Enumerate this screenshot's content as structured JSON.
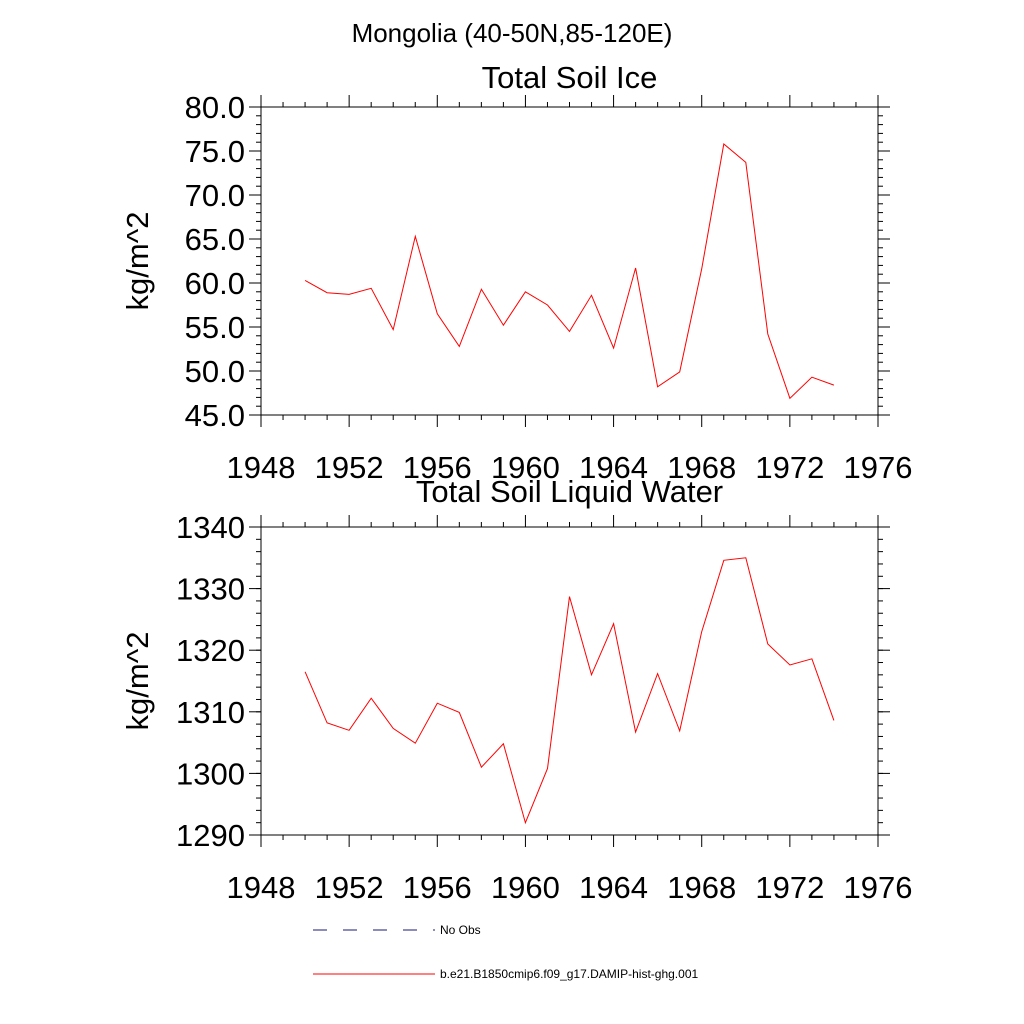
{
  "figure": {
    "title": "Mongolia (40-50N,85-120E)"
  },
  "colors": {
    "model_line": "#ff0000",
    "obs_line": "#1a1a7a",
    "axis": "#000000"
  },
  "chart_data": [
    {
      "type": "line",
      "title": "Total Soil Ice",
      "xlabel": "",
      "ylabel": "kg/m^2",
      "xlim": [
        1948,
        1976
      ],
      "ylim": [
        45,
        80
      ],
      "x_ticks": [
        "1948",
        "1952",
        "1956",
        "1960",
        "1964",
        "1968",
        "1972",
        "1976"
      ],
      "y_ticks": [
        "45.0",
        "50.0",
        "55.0",
        "60.0",
        "65.0",
        "70.0",
        "75.0",
        "80.0"
      ],
      "grid": false,
      "series": [
        {
          "name": "b.e21.B1850cmip6.f09_g17.DAMIP-hist-ghg.001",
          "x": [
            1950,
            1951,
            1952,
            1953,
            1954,
            1955,
            1956,
            1957,
            1958,
            1959,
            1960,
            1961,
            1962,
            1963,
            1964,
            1965,
            1966,
            1967,
            1968,
            1969,
            1970,
            1971,
            1972,
            1973,
            1974
          ],
          "values": [
            60.3,
            58.9,
            58.7,
            59.4,
            54.7,
            65.3,
            56.5,
            52.8,
            59.3,
            55.2,
            59.0,
            57.5,
            54.5,
            58.6,
            52.6,
            61.7,
            48.2,
            49.9,
            61.6,
            75.8,
            73.7,
            54.2,
            46.9,
            49.3,
            48.4
          ]
        }
      ]
    },
    {
      "type": "line",
      "title": "Total Soil Liquid Water",
      "xlabel": "",
      "ylabel": "kg/m^2",
      "xlim": [
        1948,
        1976
      ],
      "ylim": [
        1290,
        1340
      ],
      "x_ticks": [
        "1948",
        "1952",
        "1956",
        "1960",
        "1964",
        "1968",
        "1972",
        "1976"
      ],
      "y_ticks": [
        "1290",
        "1300",
        "1310",
        "1320",
        "1330",
        "1340"
      ],
      "grid": false,
      "series": [
        {
          "name": "b.e21.B1850cmip6.f09_g17.DAMIP-hist-ghg.001",
          "x": [
            1950,
            1951,
            1952,
            1953,
            1954,
            1955,
            1956,
            1957,
            1958,
            1959,
            1960,
            1961,
            1962,
            1963,
            1964,
            1965,
            1966,
            1967,
            1968,
            1969,
            1970,
            1971,
            1972,
            1973,
            1974
          ],
          "values": [
            1316.5,
            1308.2,
            1307.0,
            1312.2,
            1307.3,
            1304.9,
            1311.4,
            1309.9,
            1301.0,
            1304.8,
            1292.0,
            1300.8,
            1328.7,
            1316.0,
            1324.3,
            1306.7,
            1316.2,
            1306.9,
            1323.0,
            1334.6,
            1335.0,
            1321.0,
            1317.6,
            1318.6,
            1308.6
          ]
        }
      ]
    }
  ],
  "legend": {
    "placement": "bottom",
    "items": [
      {
        "label": "No Obs",
        "style": "dashed"
      },
      {
        "label": "b.e21.B1850cmip6.f09_g17.DAMIP-hist-ghg.001",
        "style": "solid"
      }
    ]
  }
}
